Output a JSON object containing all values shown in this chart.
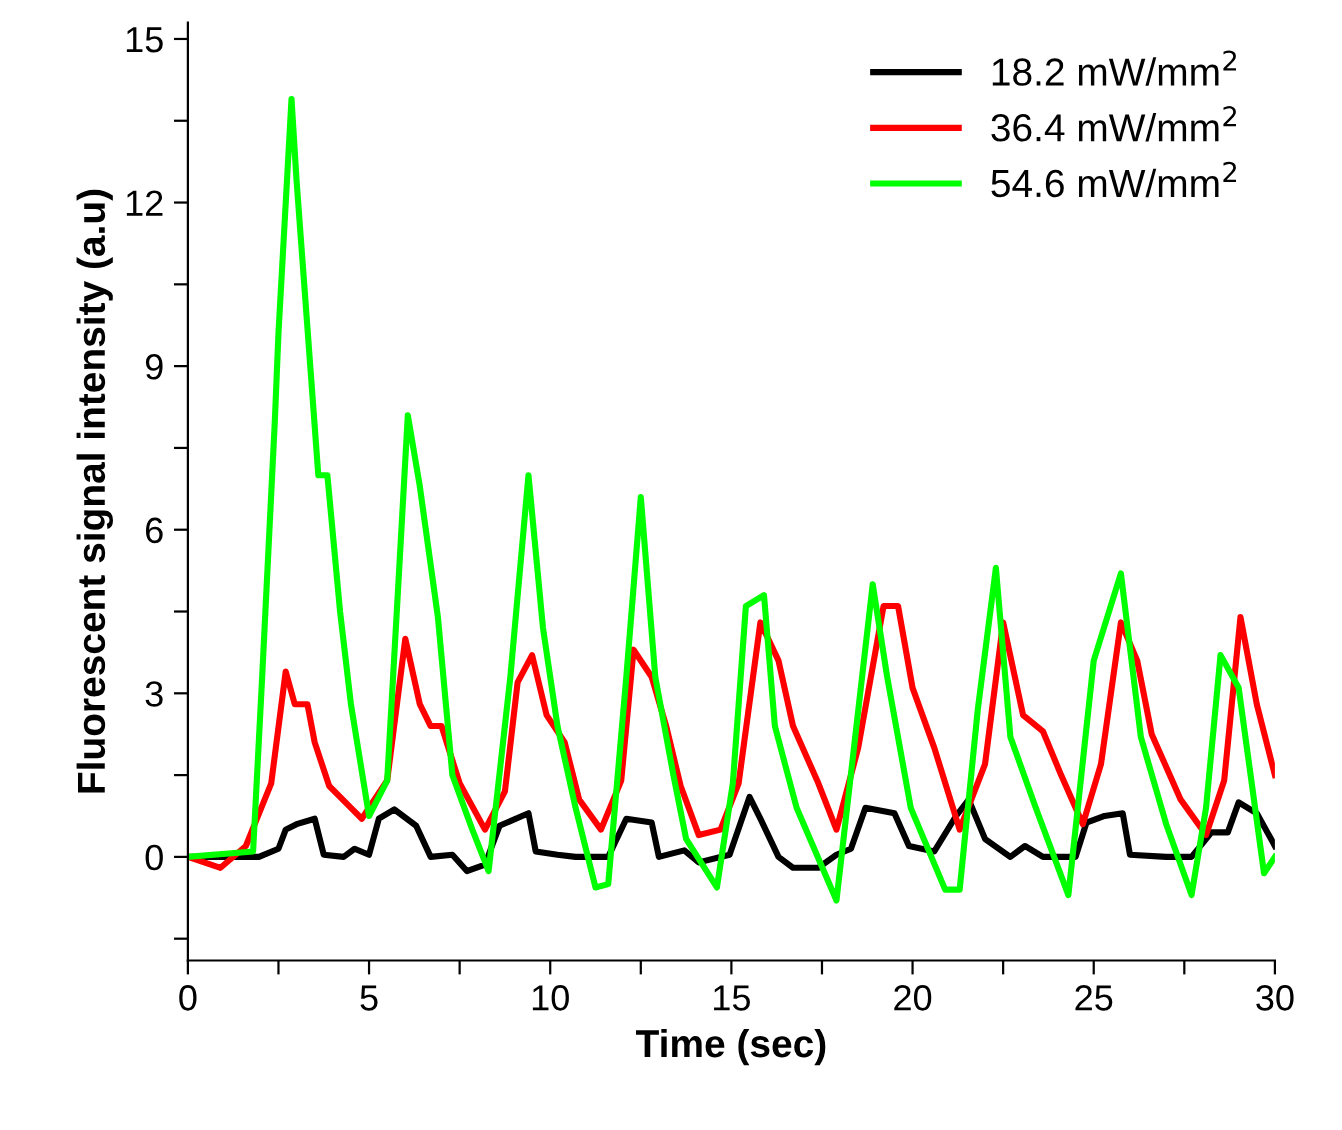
{
  "chart_data": {
    "type": "line",
    "xlabel": "Time (sec)",
    "ylabel": "Fluorescent signal intensity (a.u)",
    "xlim": [
      0,
      30
    ],
    "ylim": [
      -1.9,
      15.3
    ],
    "xticks": [
      0,
      {
        "value": 2.5,
        "label": null
      },
      5,
      {
        "value": 7.5,
        "label": null
      },
      10,
      {
        "value": 12.5,
        "label": null
      },
      15,
      {
        "value": 17.5,
        "label": null
      },
      20,
      {
        "value": 22.5,
        "label": null
      },
      25,
      {
        "value": 27.5,
        "label": null
      },
      30
    ],
    "yticks": [
      {
        "value": -1.5,
        "label": null
      },
      0,
      {
        "value": 1.5,
        "label": null
      },
      3,
      {
        "value": 4.5,
        "label": null
      },
      6,
      {
        "value": 7.5,
        "label": null
      },
      9,
      {
        "value": 10.5,
        "label": null
      },
      12,
      {
        "value": 13.5,
        "label": null
      },
      15
    ],
    "grid": false,
    "legend": "top right",
    "line_style": "solid",
    "marker": "none",
    "series": [
      {
        "name": "18.2 mW/mm$^{2}$",
        "color": "#000000",
        "x": [
          0,
          1.96,
          2.5,
          2.7,
          3.0,
          3.5,
          3.75,
          4.3,
          4.6,
          5.0,
          5.27,
          5.7,
          6.3,
          6.7,
          7.3,
          7.7,
          8.2,
          8.6,
          9.4,
          9.6,
          10.2,
          10.7,
          11.6,
          12.1,
          12.8,
          13.0,
          13.7,
          14.1,
          14.95,
          15.5,
          15.8,
          16.3,
          16.7,
          17.4,
          17.9,
          18.3,
          18.7,
          19.5,
          19.9,
          20.6,
          21.2,
          21.55,
          22.0,
          22.7,
          23.1,
          23.6,
          24.5,
          24.8,
          25.3,
          25.8,
          26.0,
          27.0,
          27.7,
          28.25,
          28.7,
          29.0,
          29.5,
          30
        ],
        "values": [
          0,
          0,
          0.15,
          0.5,
          0.6,
          0.7,
          0.04,
          0,
          0.15,
          0.04,
          0.7,
          0.87,
          0.57,
          0,
          0.04,
          -0.26,
          -0.14,
          0.57,
          0.8,
          0.1,
          0.04,
          0,
          0,
          0.7,
          0.63,
          0,
          0.12,
          -0.1,
          0.04,
          1.1,
          0.7,
          0,
          -0.2,
          -0.2,
          0.04,
          0.15,
          0.9,
          0.8,
          0.2,
          0.1,
          0.75,
          1.05,
          0.33,
          0,
          0.2,
          0,
          0,
          0.63,
          0.75,
          0.8,
          0.04,
          0,
          0,
          0.45,
          0.45,
          1.0,
          0.8,
          0.2
        ]
      },
      {
        "name": "36.4 mW/mm$^{2}$",
        "color": "#ff0000",
        "x": [
          0,
          0.9,
          1.6,
          2.3,
          2.7,
          2.95,
          3.3,
          3.5,
          3.9,
          4.5,
          4.8,
          5.5,
          6.0,
          6.4,
          6.7,
          7.0,
          7.5,
          8.2,
          8.75,
          9.1,
          9.5,
          9.9,
          10.4,
          10.8,
          11.4,
          11.96,
          12.3,
          12.8,
          13.2,
          13.6,
          14.1,
          14.7,
          15.2,
          15.8,
          16.3,
          16.7,
          17.4,
          17.9,
          18.5,
          19.2,
          19.6,
          20.0,
          20.6,
          21.3,
          22.0,
          22.5,
          23.05,
          23.6,
          24.1,
          24.7,
          25.2,
          25.75,
          26.2,
          26.6,
          27.4,
          28.1,
          28.6,
          29.05,
          29.5,
          30
        ],
        "values": [
          0,
          -0.2,
          0.2,
          1.35,
          3.4,
          2.8,
          2.8,
          2.1,
          1.3,
          0.9,
          0.7,
          1.4,
          4.0,
          2.8,
          2.4,
          2.4,
          1.35,
          0.5,
          1.2,
          3.2,
          3.7,
          2.6,
          2.1,
          1.05,
          0.5,
          1.4,
          3.8,
          3.3,
          2.4,
          1.3,
          0.4,
          0.5,
          1.35,
          4.3,
          3.6,
          2.4,
          1.35,
          0.5,
          2.0,
          4.6,
          4.6,
          3.1,
          2.0,
          0.5,
          1.7,
          4.3,
          2.6,
          2.3,
          1.5,
          0.6,
          1.7,
          4.3,
          3.6,
          2.25,
          1.05,
          0.4,
          1.4,
          4.4,
          2.8,
          1.5
        ]
      },
      {
        "name": "54.6 mW/mm$^{2}$",
        "color": "#00ff00",
        "x": [
          0,
          1.8,
          2.05,
          2.4,
          2.5,
          2.86,
          3.0,
          3.3,
          3.6,
          3.85,
          4.2,
          4.5,
          5.0,
          5.5,
          5.8,
          6.07,
          6.4,
          6.9,
          7.3,
          7.85,
          8.3,
          8.9,
          9.4,
          9.8,
          10.2,
          10.7,
          11.25,
          11.6,
          12.1,
          12.5,
          12.9,
          13.4,
          13.75,
          14.6,
          15.04,
          15.4,
          15.9,
          16.2,
          16.8,
          17.9,
          18.4,
          18.9,
          19.3,
          19.95,
          20.9,
          21.3,
          21.8,
          22.3,
          22.7,
          23.4,
          24.3,
          25.0,
          25.75,
          26.3,
          27.0,
          27.7,
          28.1,
          28.5,
          29.0,
          29.7,
          30
        ],
        "values": [
          0,
          0.1,
          3.3,
          8.0,
          9.6,
          13.9,
          12.4,
          9.7,
          7.0,
          7.0,
          4.5,
          2.8,
          0.75,
          1.4,
          4.9,
          8.1,
          6.8,
          4.4,
          1.5,
          0.5,
          -0.26,
          3.3,
          7.0,
          4.2,
          2.4,
          0.9,
          -0.56,
          -0.5,
          3.3,
          6.6,
          3.3,
          1.5,
          0.33,
          -0.56,
          1.35,
          4.6,
          4.8,
          2.4,
          0.9,
          -0.8,
          2.1,
          5.0,
          3.3,
          0.9,
          -0.6,
          -0.6,
          2.7,
          5.3,
          2.2,
          0.9,
          -0.7,
          3.6,
          5.2,
          2.2,
          0.6,
          -0.7,
          0.9,
          3.7,
          3.1,
          -0.3,
          0
        ]
      }
    ]
  }
}
